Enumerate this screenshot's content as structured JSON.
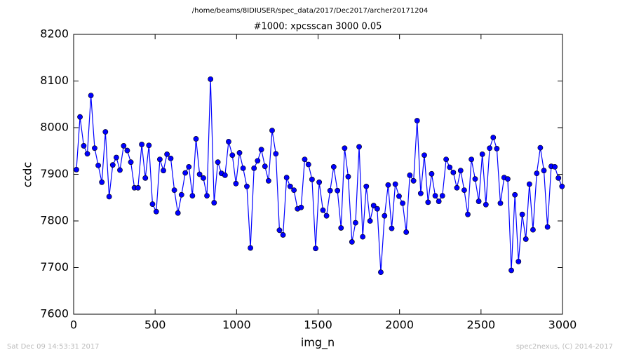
{
  "chart_data": {
    "type": "line",
    "suptitle": "/home/beams/8IDIUSER/spec_data/2017/Dec2017/archer20171204",
    "title": "#1000: xpcsscan 3000 0.05",
    "xlabel": "img_n",
    "ylabel": "ccdc",
    "footer_left": "Sat Dec 09 14:53:31 2017",
    "footer_right": "spec2nexus, (C) 2014-2017",
    "xlim": [
      0,
      3000
    ],
    "xticks": [
      0,
      500,
      1000,
      1500,
      2000,
      2500,
      3000
    ],
    "ylim": [
      7600,
      8200
    ],
    "yticks": [
      7600,
      7700,
      7800,
      7900,
      8000,
      8100,
      8200
    ],
    "grid": false,
    "x": [
      17,
      39,
      62,
      84,
      106,
      129,
      151,
      173,
      195,
      218,
      240,
      262,
      284,
      307,
      329,
      351,
      373,
      395,
      418,
      440,
      462,
      484,
      507,
      529,
      551,
      573,
      596,
      618,
      640,
      662,
      685,
      707,
      729,
      751,
      773,
      796,
      818,
      840,
      862,
      885,
      907,
      929,
      951,
      974,
      996,
      1018,
      1040,
      1063,
      1085,
      1107,
      1129,
      1152,
      1174,
      1196,
      1218,
      1241,
      1263,
      1285,
      1307,
      1329,
      1352,
      1374,
      1396,
      1418,
      1441,
      1463,
      1485,
      1507,
      1530,
      1552,
      1574,
      1596,
      1619,
      1641,
      1663,
      1685,
      1708,
      1730,
      1752,
      1774,
      1796,
      1819,
      1841,
      1863,
      1885,
      1908,
      1930,
      1952,
      1974,
      1997,
      2019,
      2041,
      2063,
      2086,
      2108,
      2130,
      2152,
      2175,
      2197,
      2219,
      2241,
      2263,
      2286,
      2308,
      2330,
      2352,
      2375,
      2397,
      2419,
      2441,
      2464,
      2486,
      2508,
      2530,
      2553,
      2575,
      2597,
      2619,
      2642,
      2664,
      2686,
      2708,
      2730,
      2753,
      2775,
      2797,
      2819,
      2842,
      2864,
      2886,
      2908,
      2931,
      2953,
      2975,
      2997
    ],
    "series": [
      {
        "color": "#0000ff",
        "values": [
          7910,
          8023,
          7961,
          7944,
          8069,
          7956,
          7919,
          7883,
          7991,
          7852,
          7920,
          7936,
          7909,
          7961,
          7951,
          7926,
          7871,
          7871,
          7964,
          7892,
          7962,
          7836,
          7820,
          7932,
          7908,
          7943,
          7934,
          7866,
          7817,
          7856,
          7903,
          7916,
          7854,
          7976,
          7900,
          7892,
          7854,
          8104,
          7839,
          7926,
          7902,
          7898,
          7970,
          7941,
          7880,
          7946,
          7913,
          7874,
          7742,
          7913,
          7929,
          7953,
          7917,
          7886,
          7994,
          7944,
          7780,
          7770,
          7893,
          7874,
          7866,
          7826,
          7829,
          7932,
          7921,
          7889,
          7741,
          7883,
          7823,
          7811,
          7865,
          7916,
          7865,
          7785,
          7956,
          7895,
          7755,
          7796,
          7959,
          7766,
          7874,
          7800,
          7833,
          7826,
          7690,
          7811,
          7877,
          7784,
          7879,
          7853,
          7838,
          7776,
          7898,
          7886,
          8015,
          7859,
          7941,
          7840,
          7901,
          7854,
          7842,
          7854,
          7932,
          7915,
          7904,
          7871,
          7908,
          7866,
          7814,
          7932,
          7890,
          7842,
          7943,
          7835,
          7956,
          7979,
          7955,
          7838,
          7893,
          7890,
          7694,
          7856,
          7713,
          7814,
          7761,
          7879,
          7781,
          7902,
          7957,
          7908,
          7787,
          7917,
          7916,
          7892,
          7874
        ]
      }
    ]
  }
}
